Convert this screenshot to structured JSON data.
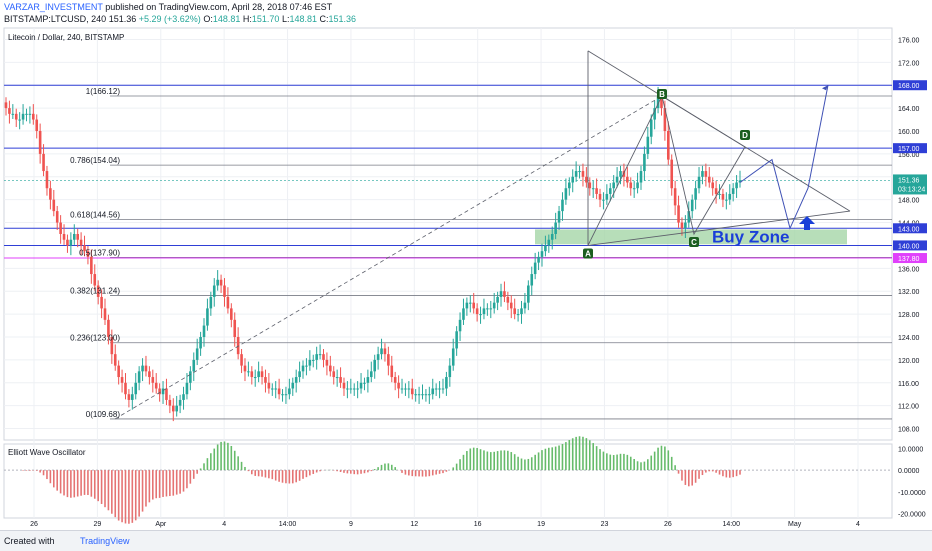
{
  "header": {
    "author": "VARZAR_INVESTMENT",
    "published": " published on TradingView.com, April 28, 2018 07:46 EST",
    "symbol": "BITSTAMP:LTCUSD, 240",
    "last": "151.36",
    "change": "+5.29 (+3.62%)",
    "o_label": "O:",
    "o": "148.81",
    "h_label": "H:",
    "h": "151.70",
    "l_label": "L:",
    "l": "148.81",
    "c_label": "C:",
    "c": "151.36"
  },
  "footer": {
    "created_with": "Created with",
    "brand": "TradingView"
  },
  "colors": {
    "up": "#26a69a",
    "down": "#ef5350",
    "blue_line": "#2f3fd6",
    "magenta": "#e040fb",
    "zone": "#a5d6a7",
    "zone_text": "#1a3fd8"
  },
  "chart_data": [
    {
      "type": "candlestick",
      "title": "Litecoin / Dollar, 240, BITSTAMP",
      "x_ticks": [
        "26",
        "29",
        "Apr",
        "4",
        "14:00",
        "9",
        "12",
        "16",
        "19",
        "23",
        "26",
        "14:00",
        "May",
        "4"
      ],
      "y_ticks": [
        "176.00",
        "172.00",
        "168.00",
        "164.00",
        "160.00",
        "156.00",
        "152.00",
        "148.00",
        "144.00",
        "140.00",
        "136.00",
        "132.00",
        "128.00",
        "124.00",
        "120.00",
        "116.00",
        "112.00",
        "108.00"
      ],
      "ylim": [
        106,
        178
      ],
      "grid": true,
      "fib_levels": [
        {
          "label": "1(166.12)",
          "value": 166.12
        },
        {
          "label": "0.786(154.04)",
          "value": 154.04
        },
        {
          "label": "0.618(144.56)",
          "value": 144.56
        },
        {
          "label": "0.5(137.90)",
          "value": 137.9
        },
        {
          "label": "0.382(131.24)",
          "value": 131.24
        },
        {
          "label": "0.236(123.00)",
          "value": 123.0
        },
        {
          "label": "0(109.68)",
          "value": 109.68
        }
      ],
      "price_lines": [
        {
          "label": "168.00",
          "value": 168.0,
          "color": "#2f3fd6"
        },
        {
          "label": "157.00",
          "value": 157.0,
          "color": "#2f3fd6"
        },
        {
          "label": "143.00",
          "value": 143.0,
          "color": "#2f3fd6"
        },
        {
          "label": "140.00",
          "value": 140.0,
          "color": "#2f3fd6"
        },
        {
          "label": "137.80",
          "value": 137.8,
          "color": "#e040fb"
        }
      ],
      "last_price": {
        "label": "151.36",
        "value": 151.36,
        "countdown": "03:13:24"
      },
      "zone": {
        "label": "Buy Zone",
        "from": 140.2,
        "to": 142.8
      },
      "pattern_points": [
        {
          "label": "A",
          "value": 140.0
        },
        {
          "label": "B",
          "value": 166.12
        },
        {
          "label": "C",
          "value": 142.0
        },
        {
          "label": "D",
          "value": 157.2
        }
      ],
      "closes": [
        164,
        163,
        163,
        162,
        162,
        163,
        163,
        163,
        162,
        160,
        156,
        153,
        150,
        148,
        146,
        144,
        142,
        141,
        140,
        141,
        142,
        141,
        140,
        139,
        138,
        135,
        133,
        131,
        129,
        127,
        124,
        121,
        119,
        117,
        116,
        114,
        113,
        114,
        116,
        118,
        119,
        118,
        117,
        116,
        115,
        114,
        115,
        113,
        112,
        111,
        112,
        113,
        114,
        116,
        118,
        120,
        122,
        124,
        126,
        129,
        131,
        133,
        134,
        133,
        131,
        129,
        127,
        124,
        121,
        119,
        118,
        118,
        117,
        117,
        118,
        117,
        116,
        115,
        115,
        115,
        114,
        114,
        114,
        115,
        116,
        117,
        118,
        119,
        119,
        120,
        120,
        121,
        121,
        120,
        119,
        118,
        117,
        117,
        116,
        115,
        115,
        115,
        115,
        115,
        116,
        116,
        117,
        118,
        120,
        121,
        122,
        121,
        119,
        117,
        116,
        115,
        115,
        115,
        115,
        114,
        114,
        114,
        114,
        114,
        114,
        115,
        115,
        115,
        115,
        117,
        119,
        122,
        125,
        127,
        129,
        130,
        130,
        129,
        128,
        128,
        129,
        129,
        129,
        130,
        131,
        132,
        131,
        130,
        129,
        128,
        128,
        129,
        130,
        133,
        135,
        137,
        138,
        139,
        140,
        141,
        142,
        144,
        146,
        148,
        150,
        151,
        152,
        153,
        153,
        152,
        151,
        150,
        150,
        149,
        148,
        148,
        149,
        150,
        151,
        152,
        153,
        152,
        151,
        150,
        150,
        151,
        153,
        156,
        159,
        162,
        164,
        166,
        164,
        160,
        155,
        150,
        147,
        144,
        143,
        144,
        146,
        148,
        150,
        152,
        153,
        152,
        151,
        150,
        149,
        149,
        148,
        148,
        149,
        150,
        151,
        151.36
      ]
    },
    {
      "type": "bar",
      "title": "Elliott Wave Oscillator",
      "y_ticks": [
        "10.0000",
        "0.0000",
        "-10.0000",
        "-20.0000"
      ],
      "ylim": [
        -22,
        12
      ]
    }
  ]
}
